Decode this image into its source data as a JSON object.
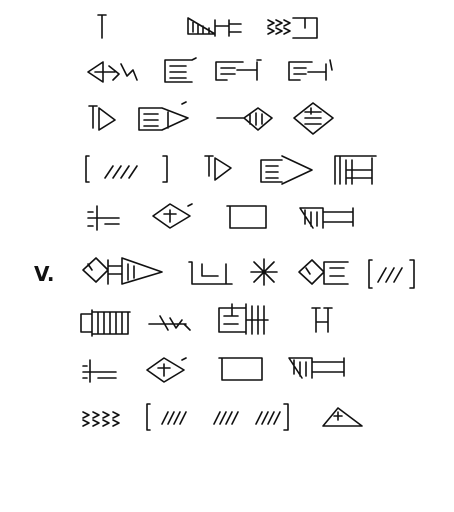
{
  "section_label": "V.",
  "colors": {
    "ink": "#111111",
    "paper": "#ffffff"
  }
}
